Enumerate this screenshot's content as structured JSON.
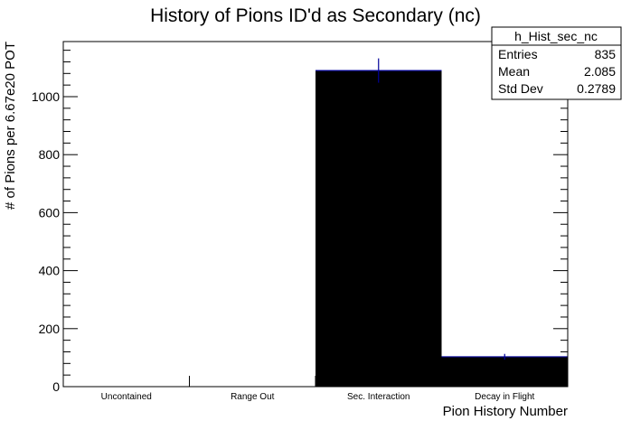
{
  "chart_data": {
    "type": "bar",
    "title": "History of Pions ID'd as Secondary (nc)",
    "xlabel": "Pion History Number",
    "ylabel": "# of Pions per 6.67e20 POT",
    "categories": [
      "Uncontained",
      "Range Out",
      "Sec. Interaction",
      "Decay in Flight"
    ],
    "values": [
      0,
      0,
      1090,
      103
    ],
    "errors": [
      0,
      0,
      42,
      10
    ],
    "ylim": [
      0,
      1190
    ],
    "yticks": [
      0,
      200,
      400,
      600,
      800,
      1000
    ],
    "ytick_labels": [
      "0",
      "200",
      "400",
      "600",
      "800",
      "1000"
    ],
    "grid": false,
    "bar_color": "#000000",
    "edge_color": "#000099",
    "stats_box": {
      "name": "h_Hist_sec_nc",
      "rows": [
        {
          "label": "Entries",
          "value": "835"
        },
        {
          "label": "Mean",
          "value": "2.085"
        },
        {
          "label": "Std Dev",
          "value": "0.2789"
        }
      ],
      "placement": "top-right"
    }
  }
}
